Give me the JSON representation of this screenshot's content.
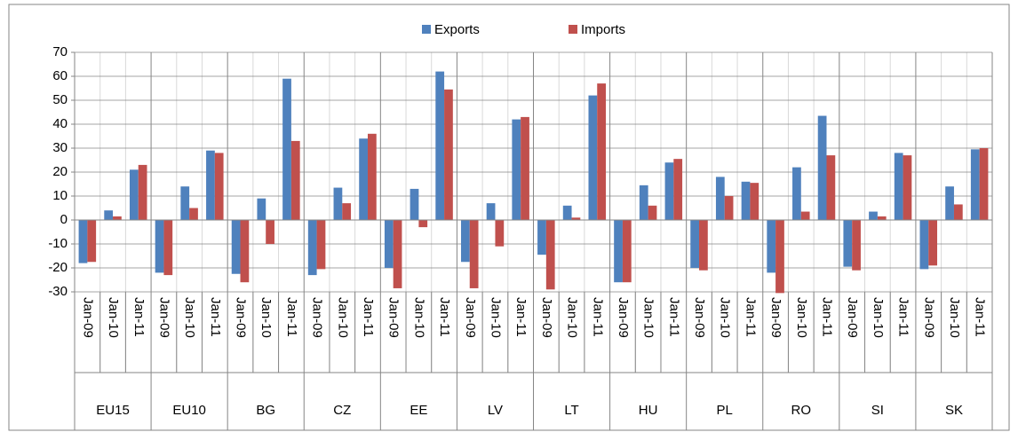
{
  "chart_data": {
    "type": "bar",
    "groups": [
      "EU15",
      "EU10",
      "BG",
      "CZ",
      "EE",
      "LV",
      "LT",
      "HU",
      "PL",
      "RO",
      "SI",
      "SK"
    ],
    "categories": [
      "Jan-09",
      "Jan-10",
      "Jan-11",
      "Jan-09",
      "Jan-10",
      "Jan-11",
      "Jan-09",
      "Jan-10",
      "Jan-11",
      "Jan-09",
      "Jan-10",
      "Jan-11",
      "Jan-09",
      "Jan-10",
      "Jan-11",
      "Jan-09",
      "Jan-10",
      "Jan-11",
      "Jan-09",
      "Jan-10",
      "Jan-11",
      "Jan-09",
      "Jan-10",
      "Jan-11",
      "Jan-09",
      "Jan-10",
      "Jan-11",
      "Jan-09",
      "Jan-10",
      "Jan-11",
      "Jan-09",
      "Jan-10",
      "Jan-11",
      "Jan-09",
      "Jan-10",
      "Jan-11"
    ],
    "series": [
      {
        "name": "Exports",
        "color": "#4f81bd",
        "values": [
          -18,
          4,
          21,
          -22,
          14,
          29,
          -22.5,
          9,
          59,
          -23,
          13.5,
          34,
          -20,
          13,
          62,
          -17.5,
          7,
          42,
          -14.5,
          6,
          52,
          -26,
          14.5,
          24,
          -20,
          18,
          16,
          -22,
          22,
          43.5,
          -19.5,
          3.5,
          28,
          -20.5,
          14,
          29.5
        ]
      },
      {
        "name": "Imports",
        "color": "#c0504d",
        "values": [
          -17.5,
          1.5,
          23,
          -23,
          5,
          28,
          -26,
          -10,
          33,
          -20.5,
          7,
          36,
          -28.5,
          -3,
          54.5,
          -28.5,
          -11,
          43,
          -29,
          1,
          57,
          -26,
          6,
          25.5,
          -21,
          10,
          15.5,
          -30.5,
          3.5,
          27,
          -21,
          1.5,
          27,
          -19,
          6.5,
          30
        ]
      }
    ],
    "ylim": [
      -30,
      70
    ],
    "yticks": [
      -30,
      -20,
      -10,
      0,
      10,
      20,
      30,
      40,
      50,
      60,
      70
    ],
    "grid": true,
    "legend": "top"
  }
}
